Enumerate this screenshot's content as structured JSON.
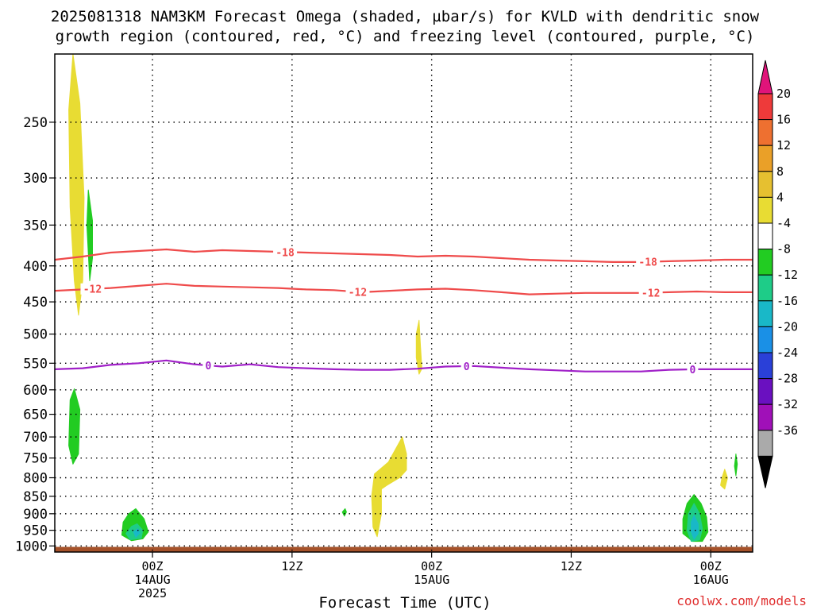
{
  "chart_data": {
    "type": "heatmap",
    "title": [
      "2025081318 NAM3KM Forecast Omega (shaded, µbar/s) for KVLD with dendritic snow",
      "growth region (contoured, red, °C) and freezing level (contoured, purple, °C)"
    ],
    "xlabel": "Forecast Time (UTC)",
    "ylabel": "",
    "credit": "coolwx.com/models",
    "x_range_hours": [
      -7,
      43
    ],
    "y_range_hpa": [
      200,
      1020
    ],
    "y_scale": "log",
    "grid": "dotted",
    "x_ticks": [
      {
        "h": 0,
        "l1": "00Z",
        "l2": "14AUG",
        "l3": "2025"
      },
      {
        "h": 10,
        "l1": "12Z",
        "l2": "",
        "l3": ""
      },
      {
        "h": 20,
        "l1": "00Z",
        "l2": "15AUG",
        "l3": ""
      },
      {
        "h": 30,
        "l1": "12Z",
        "l2": "",
        "l3": ""
      },
      {
        "h": 40,
        "l1": "00Z",
        "l2": "16AUG",
        "l3": ""
      }
    ],
    "y_ticks": [
      "250",
      "300",
      "350",
      "400",
      "450",
      "500",
      "550",
      "600",
      "650",
      "700",
      "750",
      "800",
      "850",
      "900",
      "950",
      "1000"
    ],
    "contours": [
      {
        "name": "-18",
        "color": "#ef4b4b",
        "x": [
          -7,
          -5,
          -3,
          -1,
          1,
          3,
          5,
          7,
          9,
          11,
          13,
          15,
          17,
          19,
          21,
          23,
          25,
          27,
          29,
          31,
          33,
          35,
          37,
          39,
          41,
          43
        ],
        "y": [
          392,
          388,
          383,
          381,
          379,
          382,
          380,
          381,
          382,
          383,
          384,
          385,
          386,
          388,
          387,
          388,
          390,
          392,
          393,
          394,
          395,
          395,
          394,
          393,
          392,
          392
        ],
        "labels": [
          {
            "x": 9.5,
            "text": "-18"
          },
          {
            "x": 35.5,
            "text": "-18"
          }
        ]
      },
      {
        "name": "-12",
        "color": "#ef4b4b",
        "x": [
          -7,
          -5,
          -3,
          -1,
          1,
          3,
          5,
          7,
          9,
          11,
          13,
          15,
          17,
          19,
          21,
          23,
          25,
          27,
          29,
          31,
          33,
          35,
          37,
          39,
          41,
          43
        ],
        "y": [
          434,
          432,
          430,
          427,
          424,
          427,
          428,
          429,
          430,
          432,
          433,
          436,
          434,
          432,
          431,
          433,
          436,
          439,
          438,
          437,
          437,
          437,
          436,
          435,
          436,
          436
        ],
        "labels": [
          {
            "x": -4.3,
            "text": "-12"
          },
          {
            "x": 14.7,
            "text": "-12"
          },
          {
            "x": 35.7,
            "text": "-12"
          }
        ]
      },
      {
        "name": "0",
        "color": "#a020c8",
        "x": [
          -7,
          -5,
          -3,
          -1,
          1,
          3,
          5,
          7,
          9,
          11,
          13,
          15,
          17,
          19,
          21,
          23,
          25,
          27,
          29,
          31,
          33,
          35,
          37,
          39,
          41,
          43
        ],
        "y": [
          561,
          559,
          553,
          550,
          545,
          552,
          556,
          552,
          557,
          559,
          561,
          562,
          562,
          560,
          556,
          555,
          558,
          561,
          563,
          565,
          565,
          565,
          562,
          561,
          561,
          561
        ],
        "labels": [
          {
            "x": 4,
            "text": "0"
          },
          {
            "x": 22.5,
            "text": "0"
          },
          {
            "x": 38.7,
            "text": "0"
          }
        ]
      }
    ],
    "omega_regions": [
      {
        "value": 6,
        "color": "#e8dc33",
        "x": [
          -5.7,
          -5.2,
          -4.9,
          -5.0,
          -5.3,
          -5.6,
          -5.9,
          -6.0
        ],
        "y": [
          200,
          235,
          320,
          420,
          470,
          420,
          330,
          240
        ]
      },
      {
        "value": -6,
        "color": "#22cc22",
        "x": [
          -4.6,
          -4.3,
          -4.3,
          -4.5,
          -4.7
        ],
        "y": [
          312,
          345,
          390,
          420,
          350
        ]
      },
      {
        "value": -6,
        "color": "#22cc22",
        "x": [
          -5.6,
          -5.2,
          -5.3,
          -5.7,
          -6.0,
          -5.9
        ],
        "y": [
          598,
          640,
          740,
          765,
          720,
          620
        ]
      },
      {
        "value": -6,
        "color": "#22cc22",
        "x": [
          -1.2,
          -0.6,
          -0.3,
          -0.7,
          -1.5,
          -2.2,
          -2.1,
          -1.7
        ],
        "y": [
          885,
          915,
          955,
          977,
          983,
          965,
          925,
          900
        ]
      },
      {
        "value": -10,
        "color": "#1ecc88",
        "x": [
          -1.1,
          -0.7,
          -0.8,
          -1.6,
          -1.9,
          -1.5
        ],
        "y": [
          930,
          950,
          975,
          980,
          960,
          938
        ]
      },
      {
        "value": -14,
        "color": "#19b8c8",
        "x": [
          -1.05,
          -0.9,
          -1.2,
          -1.35
        ],
        "y": [
          945,
          958,
          972,
          955
        ]
      },
      {
        "value": 6,
        "color": "#e8dc33",
        "x": [
          19.1,
          19.2,
          19.3,
          19.1,
          18.9,
          18.9
        ],
        "y": [
          478,
          520,
          560,
          570,
          540,
          500
        ]
      },
      {
        "value": 6,
        "color": "#e8dc33",
        "x": [
          16.9,
          17.9,
          18.2,
          18.2,
          17.7,
          16.8,
          16.4,
          16.4,
          16.1,
          15.8,
          15.7,
          15.9
        ],
        "y": [
          760,
          700,
          740,
          780,
          800,
          820,
          830,
          900,
          970,
          940,
          850,
          790
        ]
      },
      {
        "value": -6,
        "color": "#22cc22",
        "x": [
          13.8,
          13.9,
          13.75,
          13.6
        ],
        "y": [
          885,
          895,
          907,
          895
        ]
      },
      {
        "value": -6,
        "color": "#22cc22",
        "x": [
          41.8,
          41.9,
          41.8,
          41.7
        ],
        "y": [
          740,
          765,
          795,
          770
        ]
      },
      {
        "value": 6,
        "color": "#e8dc33",
        "x": [
          41.0,
          41.2,
          41.0,
          40.7,
          40.8
        ],
        "y": [
          778,
          800,
          830,
          820,
          800
        ]
      },
      {
        "value": -6,
        "color": "#22cc22",
        "x": [
          38.8,
          39.3,
          39.7,
          39.8,
          39.4,
          38.7,
          38.0,
          38.0,
          38.3
        ],
        "y": [
          845,
          870,
          910,
          955,
          985,
          985,
          960,
          915,
          870
        ]
      },
      {
        "value": -10,
        "color": "#1ecc88",
        "x": [
          38.8,
          39.2,
          39.4,
          39.2,
          38.6,
          38.3,
          38.4
        ],
        "y": [
          870,
          900,
          945,
          980,
          985,
          950,
          900
        ]
      },
      {
        "value": -14,
        "color": "#19b8c8",
        "x": [
          38.8,
          39.1,
          39.1,
          38.8,
          38.6,
          38.6
        ],
        "y": [
          905,
          930,
          960,
          978,
          955,
          925
        ]
      }
    ],
    "terrain_fill": {
      "color": "#a5522a",
      "x": [
        -7,
        43
      ],
      "top_hpa": [
        1003,
        1003
      ],
      "bottom_hpa": 1020
    },
    "colorbar": {
      "labels": [
        "20",
        "16",
        "12",
        "8",
        "4",
        "-4",
        "-8",
        "-12",
        "-16",
        "-20",
        "-24",
        "-28",
        "-32",
        "-36"
      ],
      "colors": [
        "#ee3a3a",
        "#ee7030",
        "#eaa028",
        "#e6c030",
        "#e8dc33",
        "#ffffff",
        "#22cc22",
        "#1ecc88",
        "#19b8c8",
        "#1a90e6",
        "#2a40d8",
        "#6a10c0",
        "#a010b8",
        "#aaaaaa"
      ],
      "top_arrow_color": "#e0147a",
      "bottom_arrow_color": "#000000"
    }
  }
}
